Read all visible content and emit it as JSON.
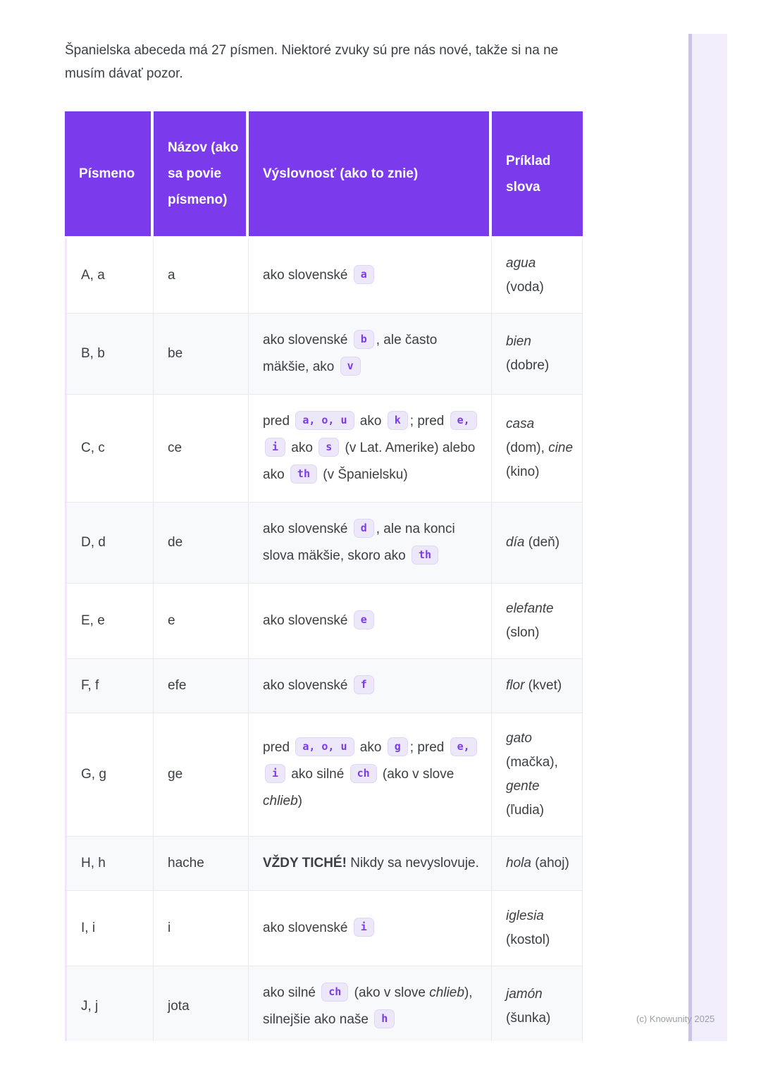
{
  "colors": {
    "header_bg": "#7B3AEC",
    "chip_bg": "#EDE8F9",
    "chip_border": "#E0D6F4",
    "chip_text": "#7C3AED",
    "row_alt_bg": "#F8F9FB",
    "cell_border": "#E9EAEE",
    "table_left_border": "#F2E6F9",
    "scrollbar_fill": "#F1EDFB",
    "scrollbar_edge": "#CFC0EC",
    "body_text": "#3C4043",
    "watermark_text": "#9AA0A6"
  },
  "page": {
    "intro": "Španielska abeceda má 27 písmen. Niektoré zvuky sú pre nás nové, takže si na ne musím dávať pozor.",
    "watermark": "(c) Knowunity 2025"
  },
  "table": {
    "headers": [
      "Písmeno",
      "Názov (ako sa povie písmeno)",
      "Výslovnosť (ako to znie)",
      "Príklad slova"
    ],
    "rows": [
      {
        "letter": "A, a",
        "name": "a",
        "pronunciation": [
          {
            "t": "ako slovenské "
          },
          {
            "c": "a"
          }
        ],
        "example": [
          {
            "i": "agua"
          },
          {
            "t": " (voda)"
          }
        ]
      },
      {
        "letter": "B, b",
        "name": "be",
        "pronunciation": [
          {
            "t": "ako slovenské "
          },
          {
            "c": "b"
          },
          {
            "t": ", ale často mäkšie, ako "
          },
          {
            "c": "v"
          }
        ],
        "example": [
          {
            "i": "bien"
          },
          {
            "t": " (dobre)"
          }
        ]
      },
      {
        "letter": "C, c",
        "name": "ce",
        "pronunciation": [
          {
            "t": "pred "
          },
          {
            "c": "a, o, u"
          },
          {
            "t": " ako "
          },
          {
            "c": "k"
          },
          {
            "t": "; pred "
          },
          {
            "c": "e,"
          },
          {
            "t": " "
          },
          {
            "c": "i"
          },
          {
            "t": " ako "
          },
          {
            "c": "s"
          },
          {
            "t": " (v Lat. Amerike) alebo ako "
          },
          {
            "c": "th"
          },
          {
            "t": " (v Španielsku)"
          }
        ],
        "example": [
          {
            "i": "casa"
          },
          {
            "t": " (dom), "
          },
          {
            "i": "cine"
          },
          {
            "t": " (kino)"
          }
        ]
      },
      {
        "letter": "D, d",
        "name": "de",
        "pronunciation": [
          {
            "t": "ako slovenské "
          },
          {
            "c": "d"
          },
          {
            "t": ", ale na konci slova mäkšie, skoro ako "
          },
          {
            "c": "th"
          }
        ],
        "example": [
          {
            "i": "día"
          },
          {
            "t": " (deň)"
          }
        ]
      },
      {
        "letter": "E, e",
        "name": "e",
        "pronunciation": [
          {
            "t": "ako slovenské "
          },
          {
            "c": "e"
          }
        ],
        "example": [
          {
            "i": "elefante"
          },
          {
            "t": " (slon)"
          }
        ]
      },
      {
        "letter": "F, f",
        "name": "efe",
        "pronunciation": [
          {
            "t": "ako slovenské "
          },
          {
            "c": "f"
          }
        ],
        "example": [
          {
            "i": "flor"
          },
          {
            "t": " (kvet)"
          }
        ]
      },
      {
        "letter": "G, g",
        "name": "ge",
        "pronunciation": [
          {
            "t": "pred "
          },
          {
            "c": "a, o, u"
          },
          {
            "t": " ako "
          },
          {
            "c": "g"
          },
          {
            "t": "; pred "
          },
          {
            "c": "e,"
          },
          {
            "t": " "
          },
          {
            "c": "i"
          },
          {
            "t": " ako silné "
          },
          {
            "c": "ch"
          },
          {
            "t": " (ako v slove "
          },
          {
            "i": "chlieb"
          },
          {
            "t": ")"
          }
        ],
        "example": [
          {
            "i": "gato"
          },
          {
            "t": " (mačka), "
          },
          {
            "i": "gente"
          },
          {
            "t": " (ľudia)"
          }
        ]
      },
      {
        "letter": "H, h",
        "name": "hache",
        "pronunciation": [
          {
            "b": "VŽDY TICHÉ!"
          },
          {
            "t": " Nikdy sa nevyslovuje."
          }
        ],
        "example": [
          {
            "i": "hola"
          },
          {
            "t": " (ahoj)"
          }
        ]
      },
      {
        "letter": "I, i",
        "name": "i",
        "pronunciation": [
          {
            "t": "ako slovenské "
          },
          {
            "c": "i"
          }
        ],
        "example": [
          {
            "i": "iglesia"
          },
          {
            "t": " (kostol)"
          }
        ]
      },
      {
        "letter": "J, j",
        "name": "jota",
        "pronunciation": [
          {
            "t": "ako silné "
          },
          {
            "c": "ch"
          },
          {
            "t": " (ako v slove "
          },
          {
            "i": "chlieb"
          },
          {
            "t": "), silnejšie ako naše "
          },
          {
            "c": "h"
          }
        ],
        "example": [
          {
            "i": "jamón"
          },
          {
            "t": " (šunka)"
          }
        ]
      }
    ]
  }
}
